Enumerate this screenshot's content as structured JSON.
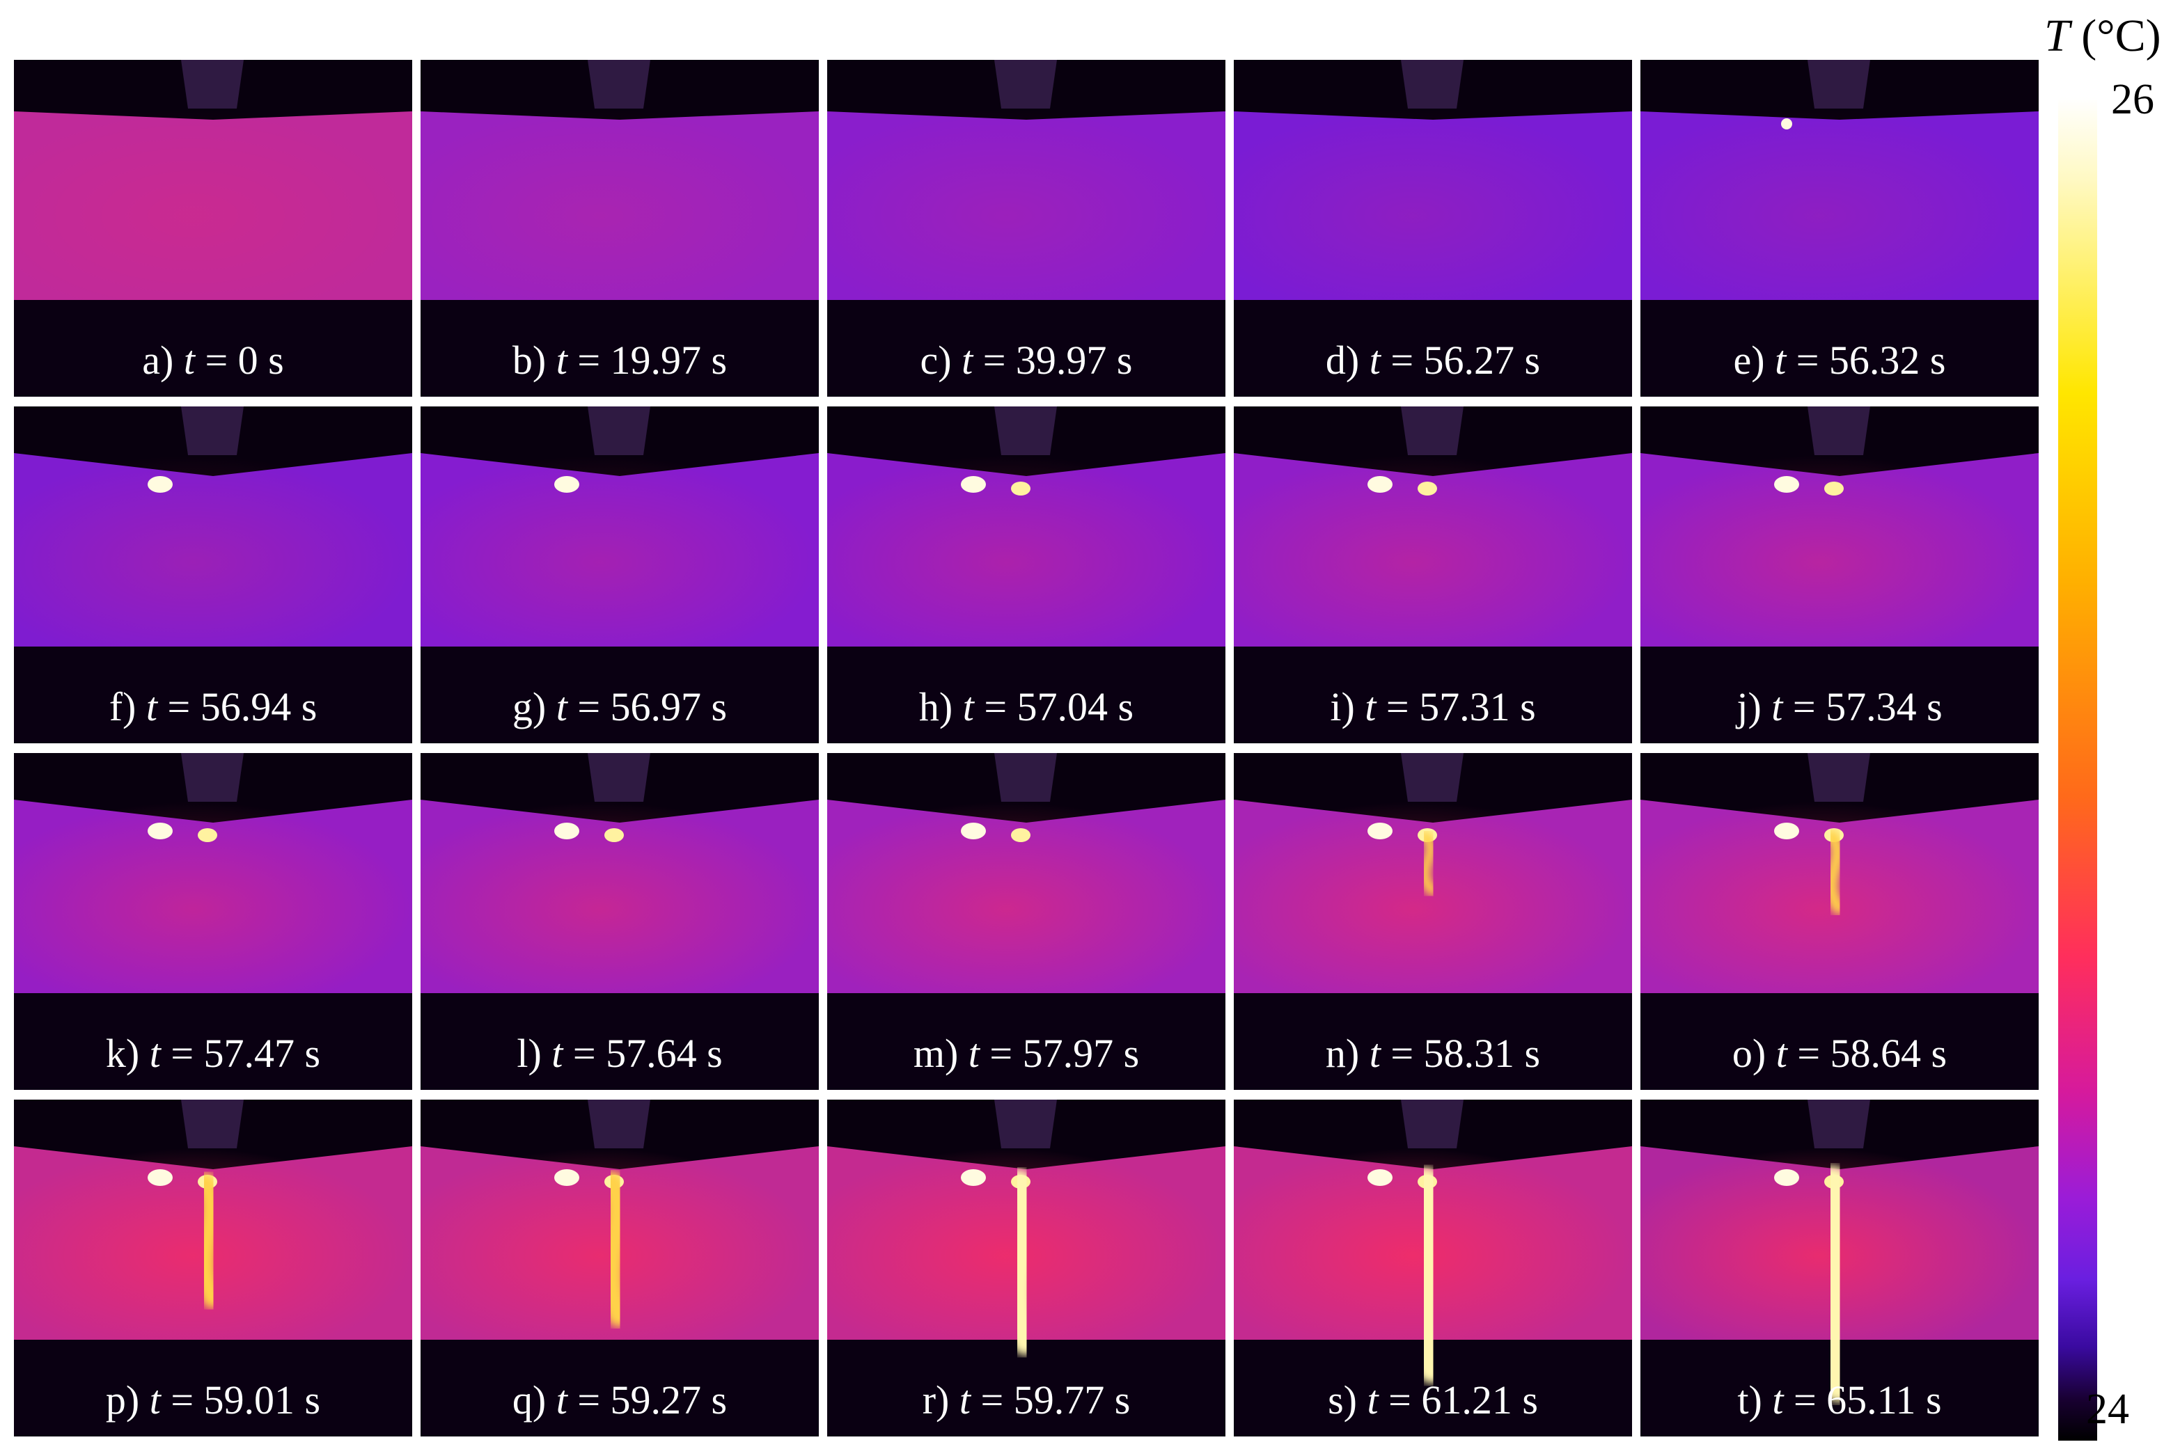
{
  "colorbar": {
    "title_symbol": "T",
    "title_unit": "(°C)",
    "max_label": "26",
    "min_label": "24",
    "colors": [
      "#ffffff",
      "#ffe600",
      "#ffb000",
      "#ff6a1a",
      "#ff2e5c",
      "#d61a9c",
      "#9a1cd8",
      "#6a1fe0",
      "#3a0aa0",
      "#000000"
    ]
  },
  "panels": [
    {
      "letter": "a)",
      "time": "= 0 s",
      "hot": 0.0,
      "crack": 0.0,
      "spots": 0,
      "body": "#c02a9a"
    },
    {
      "letter": "b)",
      "time": "= 19.97 s",
      "hot": 0.0,
      "crack": 0.0,
      "spots": 0,
      "body": "#9a22c0"
    },
    {
      "letter": "c)",
      "time": "= 39.97 s",
      "hot": 0.0,
      "crack": 0.0,
      "spots": 0,
      "body": "#8a1ecc"
    },
    {
      "letter": "d)",
      "time": "= 56.27 s",
      "hot": 0.0,
      "crack": 0.0,
      "spots": 0,
      "body": "#7a1cd4"
    },
    {
      "letter": "e)",
      "time": "= 56.32 s",
      "hot": 0.0,
      "crack": 0.0,
      "spots": 1,
      "body": "#7a1cd4"
    },
    {
      "letter": "f)",
      "time": "= 56.94 s",
      "hot": 0.1,
      "crack": 0.0,
      "spots": 1,
      "body": "#7f1cd0"
    },
    {
      "letter": "g)",
      "time": "= 56.97 s",
      "hot": 0.15,
      "crack": 0.0,
      "spots": 1,
      "body": "#851cd0"
    },
    {
      "letter": "h)",
      "time": "= 57.04 s",
      "hot": 0.2,
      "crack": 0.0,
      "spots": 2,
      "body": "#8a1ccc"
    },
    {
      "letter": "i)",
      "time": "= 57.31 s",
      "hot": 0.25,
      "crack": 0.0,
      "spots": 2,
      "body": "#901ec8"
    },
    {
      "letter": "j)",
      "time": "= 57.34 s",
      "hot": 0.3,
      "crack": 0.0,
      "spots": 2,
      "body": "#901ec8"
    },
    {
      "letter": "k)",
      "time": "= 57.47 s",
      "hot": 0.35,
      "crack": 0.0,
      "spots": 2,
      "body": "#961ec4"
    },
    {
      "letter": "l)",
      "time": "= 57.64 s",
      "hot": 0.4,
      "crack": 0.0,
      "spots": 2,
      "body": "#9a20c0"
    },
    {
      "letter": "m)",
      "time": "= 57.97 s",
      "hot": 0.45,
      "crack": 0.0,
      "spots": 2,
      "body": "#a022bc"
    },
    {
      "letter": "n)",
      "time": "= 58.31 s",
      "hot": 0.5,
      "crack": 0.15,
      "spots": 2,
      "body": "#a824b4"
    },
    {
      "letter": "o)",
      "time": "= 58.64 s",
      "hot": 0.5,
      "crack": 0.25,
      "spots": 2,
      "body": "#a824b4"
    },
    {
      "letter": "p)",
      "time": "= 59.01 s",
      "hot": 0.7,
      "crack": 0.5,
      "spots": 2,
      "body": "#c42a90"
    },
    {
      "letter": "q)",
      "time": "= 59.27 s",
      "hot": 0.7,
      "crack": 0.6,
      "spots": 2,
      "body": "#c02a94"
    },
    {
      "letter": "r)",
      "time": "= 59.77 s",
      "hot": 0.75,
      "crack": 0.75,
      "spots": 2,
      "body": "#c42a90"
    },
    {
      "letter": "s)",
      "time": "= 61.21 s",
      "hot": 0.8,
      "crack": 0.9,
      "spots": 2,
      "body": "#c42a90"
    },
    {
      "letter": "t)",
      "time": "= 65.11 s",
      "hot": 0.8,
      "crack": 1.0,
      "spots": 2,
      "body": "#b0269e"
    }
  ]
}
